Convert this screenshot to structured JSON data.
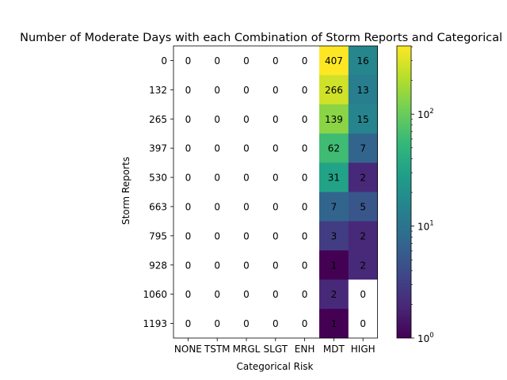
{
  "chart_data": {
    "type": "heatmap",
    "title": "Number of Moderate Days with each Combination of Storm Reports and Categorical Risk",
    "xlabel": "Categorical Risk",
    "ylabel": "Storm Reports",
    "x_categories": [
      "NONE",
      "TSTM",
      "MRGL",
      "SLGT",
      "ENH",
      "MDT",
      "HIGH"
    ],
    "y_categories": [
      "0",
      "132",
      "265",
      "397",
      "530",
      "663",
      "795",
      "928",
      "1060",
      "1193"
    ],
    "values": [
      [
        0,
        0,
        0,
        0,
        0,
        407,
        16
      ],
      [
        0,
        0,
        0,
        0,
        0,
        266,
        13
      ],
      [
        0,
        0,
        0,
        0,
        0,
        139,
        15
      ],
      [
        0,
        0,
        0,
        0,
        0,
        62,
        7
      ],
      [
        0,
        0,
        0,
        0,
        0,
        31,
        2
      ],
      [
        0,
        0,
        0,
        0,
        0,
        7,
        5
      ],
      [
        0,
        0,
        0,
        0,
        0,
        3,
        2
      ],
      [
        0,
        0,
        0,
        0,
        0,
        1,
        2
      ],
      [
        0,
        0,
        0,
        0,
        0,
        2,
        0
      ],
      [
        0,
        0,
        0,
        0,
        0,
        1,
        0
      ]
    ],
    "color_scale": "log",
    "colormap": "viridis",
    "zero_cells_color": "#ffffff",
    "colorbar": {
      "range": [
        1,
        407
      ],
      "ticks": [
        {
          "value": 1,
          "base": "10",
          "exp": "0"
        },
        {
          "value": 10,
          "base": "10",
          "exp": "1"
        },
        {
          "value": 100,
          "base": "10",
          "exp": "2"
        }
      ]
    },
    "grid": false,
    "legend": "none"
  }
}
